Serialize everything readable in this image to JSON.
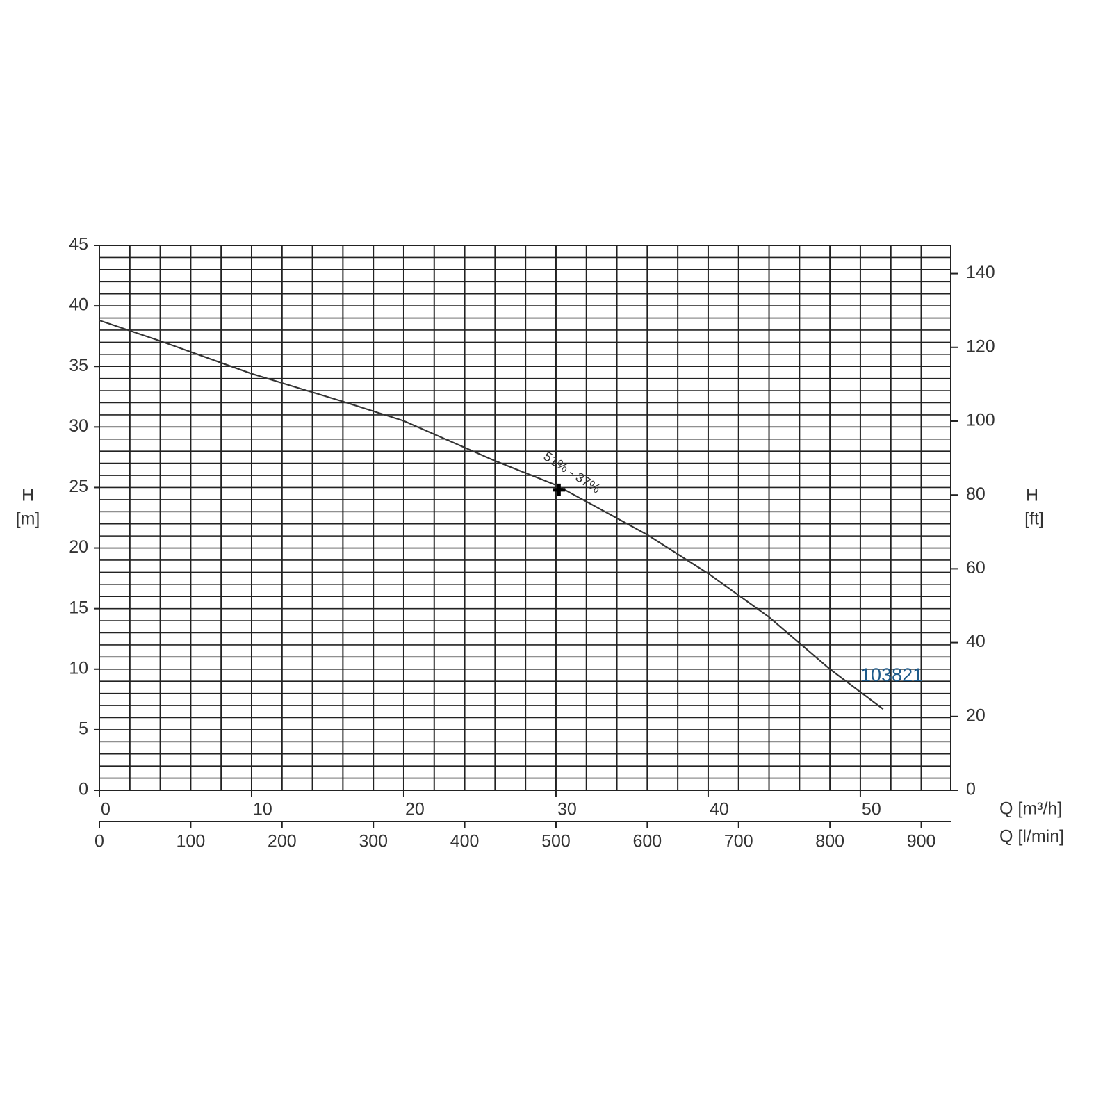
{
  "chart_data": {
    "type": "line",
    "x": [
      0,
      4,
      10,
      16,
      20,
      26,
      30,
      36,
      40,
      44,
      48,
      51.5
    ],
    "values": [
      38.8,
      37.1,
      34.4,
      32.1,
      30.5,
      27.2,
      25.2,
      21.1,
      17.9,
      14.3,
      10.0,
      6.7
    ],
    "color": "#333333",
    "xlim": [
      0,
      55.94
    ],
    "xticks": [
      0,
      10,
      20,
      30,
      40,
      50
    ],
    "xlabel": "Q [m³/h]",
    "x2lim": [
      0,
      932.3
    ],
    "x2ticks": [
      0,
      100,
      200,
      300,
      400,
      500,
      600,
      700,
      800,
      900
    ],
    "x2label": "Q [l/min]",
    "ylim": [
      0,
      45
    ],
    "yticks": [
      0,
      5,
      10,
      15,
      20,
      25,
      30,
      35,
      40,
      45
    ],
    "ylabel": [
      "H",
      "[m]"
    ],
    "y2lim": [
      0,
      147.64
    ],
    "y2ticks": [
      0,
      20,
      40,
      60,
      80,
      100,
      120,
      140
    ],
    "y2label": [
      "H",
      "[ft]"
    ],
    "grid": true,
    "xgrid_step": 2,
    "ygrid_step": 1,
    "point": {
      "x": 30.2,
      "y": 24.8,
      "label": "51% - 37%"
    },
    "curve_id": "103821",
    "curve_id_color": "#1d5a8a"
  }
}
